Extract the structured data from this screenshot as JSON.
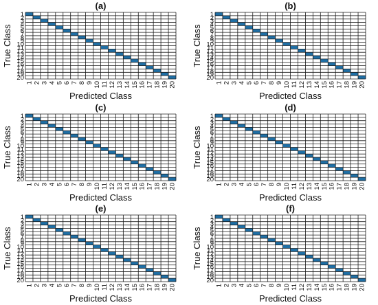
{
  "figure": {
    "background": "#ffffff",
    "cell_fill_color": "#1f6fa5",
    "grid_color": "#1a1a1a"
  },
  "chart_data": [
    {
      "type": "heatmap",
      "title": "(a)",
      "xlabel": "Predicted Class",
      "ylabel": "True Class",
      "categories": [
        "1",
        "2",
        "3",
        "4",
        "5",
        "6",
        "7",
        "8",
        "9",
        "10",
        "11",
        "12",
        "13",
        "14",
        "15",
        "16",
        "17",
        "18",
        "19",
        "20"
      ],
      "diagonal": [
        1,
        1,
        1,
        1,
        1,
        1,
        1,
        1,
        1,
        1,
        1,
        1,
        1,
        1,
        1,
        1,
        1,
        1,
        1,
        1
      ],
      "off_diagonal": 0
    },
    {
      "type": "heatmap",
      "title": "(b)",
      "xlabel": "Predicted Class",
      "ylabel": "True Class",
      "categories": [
        "1",
        "2",
        "3",
        "4",
        "5",
        "6",
        "7",
        "8",
        "9",
        "10",
        "11",
        "12",
        "13",
        "14",
        "15",
        "16",
        "17",
        "18",
        "19",
        "20"
      ],
      "diagonal": [
        1,
        1,
        1,
        1,
        1,
        1,
        1,
        1,
        1,
        1,
        1,
        1,
        1,
        1,
        1,
        1,
        1,
        1,
        1,
        1
      ],
      "off_diagonal": 0
    },
    {
      "type": "heatmap",
      "title": "(c)",
      "xlabel": "Predicted Class",
      "ylabel": "True Class",
      "categories": [
        "1",
        "2",
        "3",
        "4",
        "5",
        "6",
        "7",
        "8",
        "9",
        "10",
        "11",
        "12",
        "13",
        "14",
        "15",
        "16",
        "17",
        "18",
        "19",
        "20"
      ],
      "diagonal": [
        1,
        1,
        1,
        1,
        1,
        1,
        1,
        1,
        1,
        1,
        1,
        1,
        1,
        1,
        1,
        1,
        1,
        1,
        1,
        1
      ],
      "off_diagonal": 0
    },
    {
      "type": "heatmap",
      "title": "(d)",
      "xlabel": "Predicted Class",
      "ylabel": "True Class",
      "categories": [
        "1",
        "2",
        "3",
        "4",
        "5",
        "6",
        "7",
        "8",
        "9",
        "10",
        "11",
        "12",
        "13",
        "14",
        "15",
        "16",
        "17",
        "18",
        "19",
        "20"
      ],
      "diagonal": [
        1,
        1,
        1,
        1,
        1,
        1,
        1,
        1,
        1,
        1,
        1,
        1,
        1,
        1,
        1,
        1,
        1,
        1,
        1,
        1
      ],
      "off_diagonal": 0
    },
    {
      "type": "heatmap",
      "title": "(e)",
      "xlabel": "Predicted Class",
      "ylabel": "True Class",
      "categories": [
        "1",
        "2",
        "3",
        "4",
        "5",
        "6",
        "7",
        "8",
        "9",
        "10",
        "11",
        "12",
        "13",
        "14",
        "15",
        "16",
        "17",
        "18",
        "19",
        "20"
      ],
      "diagonal": [
        1,
        1,
        1,
        1,
        1,
        1,
        1,
        1,
        1,
        1,
        1,
        1,
        1,
        1,
        1,
        1,
        1,
        1,
        1,
        1
      ],
      "off_diagonal": 0
    },
    {
      "type": "heatmap",
      "title": "(f)",
      "xlabel": "Predicted Class",
      "ylabel": "True Class",
      "categories": [
        "1",
        "2",
        "3",
        "4",
        "5",
        "6",
        "7",
        "8",
        "9",
        "10",
        "11",
        "12",
        "13",
        "14",
        "15",
        "16",
        "17",
        "18",
        "19",
        "20"
      ],
      "diagonal": [
        1,
        1,
        1,
        1,
        1,
        1,
        1,
        1,
        1,
        1,
        1,
        1,
        1,
        1,
        1,
        1,
        1,
        1,
        1,
        1
      ],
      "off_diagonal": 0
    }
  ]
}
